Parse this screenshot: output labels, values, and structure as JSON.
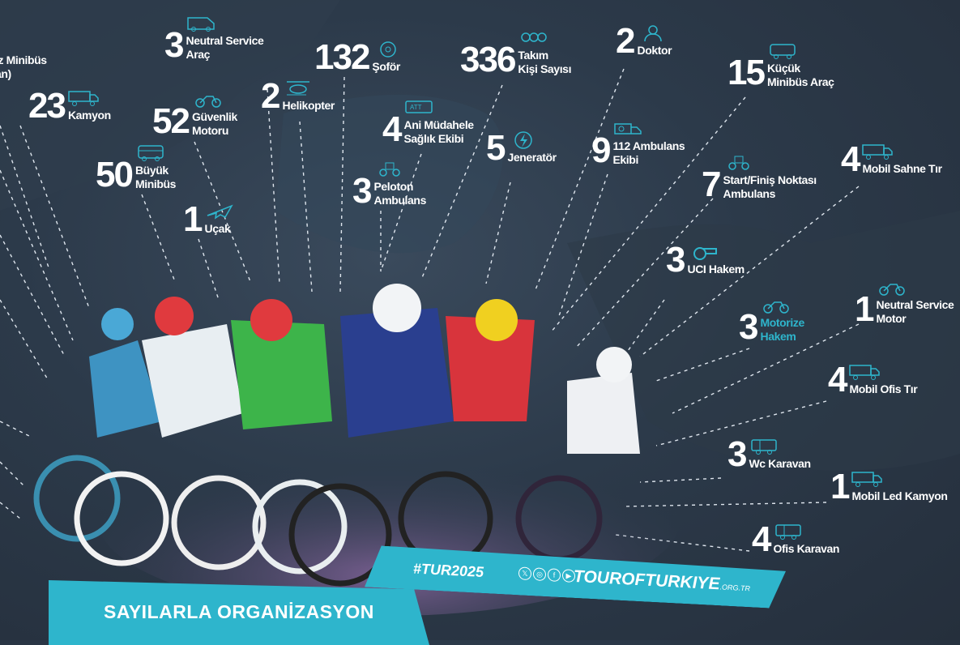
{
  "accent_color": "#2eb5cc",
  "partial_stat": {
    "label_lines": [
      "ız Minibüs",
      "an)"
    ]
  },
  "stats": [
    {
      "number": "3",
      "label_lines": [
        "Neutral Service",
        "Araç"
      ],
      "icon": "van-icon"
    },
    {
      "number": "23",
      "label_lines": [
        "Kamyon"
      ],
      "icon": "truck-icon"
    },
    {
      "number": "52",
      "label_lines": [
        "Güvenlik",
        "Motoru"
      ],
      "icon": "motorcycle-icon"
    },
    {
      "number": "50",
      "label_lines": [
        "Büyük",
        "Minibüs"
      ],
      "icon": "bus-icon"
    },
    {
      "number": "1",
      "label_lines": [
        "Uçak"
      ],
      "icon": "airplane-icon"
    },
    {
      "number": "2",
      "label_lines": [
        "Helikopter"
      ],
      "icon": "helicopter-icon"
    },
    {
      "number": "132",
      "label_lines": [
        "Şoför"
      ],
      "icon": "driver-icon"
    },
    {
      "number": "4",
      "label_lines": [
        "Ani Müdahele",
        "Sağlık Ekibi"
      ],
      "icon": "att-ambulance-icon"
    },
    {
      "number": "3",
      "label_lines": [
        "Peloton",
        "Ambulans"
      ],
      "icon": "ambulance-motorcycle-icon"
    },
    {
      "number": "336",
      "label_lines": [
        "Takım",
        "Kişi Sayısı"
      ],
      "icon": "team-icon"
    },
    {
      "number": "5",
      "label_lines": [
        "Jeneratör"
      ],
      "icon": "lightning-icon"
    },
    {
      "number": "2",
      "label_lines": [
        "Doktor"
      ],
      "icon": "doctor-icon"
    },
    {
      "number": "9",
      "label_lines": [
        "112 Ambulans",
        "Ekibi"
      ],
      "icon": "ambulance-icon"
    },
    {
      "number": "15",
      "label_lines": [
        "Küçük",
        "Minibüs Araç"
      ],
      "icon": "minibus-icon"
    },
    {
      "number": "7",
      "label_lines": [
        "Start/Finiş Noktası",
        "Ambulans"
      ],
      "icon": "ambulance-motorcycle-icon"
    },
    {
      "number": "4",
      "label_lines": [
        "Mobil Sahne Tır"
      ],
      "icon": "truck-icon"
    },
    {
      "number": "3",
      "label_lines": [
        "UCI Hakem"
      ],
      "icon": "whistle-icon"
    },
    {
      "number": "3",
      "label_lines": [
        "Motorize",
        "Hakem"
      ],
      "icon": "motorcycle-icon",
      "label_color": "#2eb5cc"
    },
    {
      "number": "1",
      "label_lines": [
        "Neutral Service",
        "Motor"
      ],
      "icon": "motorcycle-icon"
    },
    {
      "number": "4",
      "label_lines": [
        "Mobil Ofis Tır"
      ],
      "icon": "truck-icon"
    },
    {
      "number": "3",
      "label_lines": [
        "Wc Karavan"
      ],
      "icon": "caravan-icon"
    },
    {
      "number": "1",
      "label_lines": [
        "Mobil Led Kamyon"
      ],
      "icon": "truck-icon"
    },
    {
      "number": "4",
      "label_lines": [
        "Ofis Karavan"
      ],
      "icon": "caravan-icon"
    }
  ],
  "banner": {
    "title": "SAYILARLA ORGANİZASYON",
    "hashtag": "#TUR2025",
    "social_icons": [
      "x-icon",
      "instagram-icon",
      "facebook-icon",
      "youtube-icon"
    ],
    "site": "TOUROFTURKIYE",
    "site_suffix": ".ORG.TR"
  }
}
